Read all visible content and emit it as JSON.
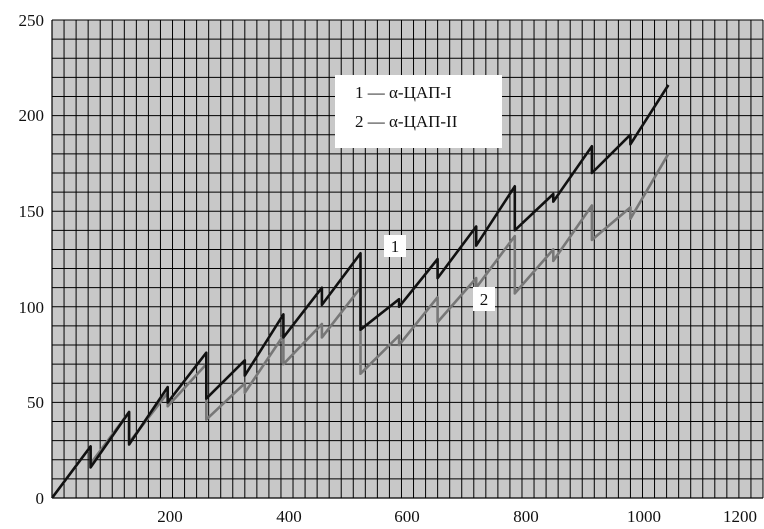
{
  "chart_data": {
    "type": "line",
    "title": "",
    "xlabel": "",
    "ylabel": "",
    "xlim": [
      0,
      1200
    ],
    "ylim": [
      0,
      250
    ],
    "x_ticks": [
      "200",
      "400",
      "600",
      "800",
      "1000",
      "1200"
    ],
    "y_ticks": [
      "0",
      "50",
      "100",
      "150",
      "200",
      "250"
    ],
    "grid": true,
    "legend_position": "top-center",
    "legend": [
      "1 — α-ЦАП-I",
      "2 — α-ЦАП-II"
    ],
    "curve_labels": [
      "1",
      "2"
    ],
    "series": [
      {
        "color": "#111111",
        "x": [
          0,
          64,
          64,
          128,
          128,
          192,
          192,
          256,
          256,
          320,
          320,
          384,
          384,
          448,
          448,
          512,
          512,
          576,
          576,
          640,
          640,
          704,
          704,
          768,
          768,
          832,
          832,
          896,
          896,
          960,
          960,
          1023
        ],
        "y": [
          0,
          27,
          16,
          45,
          28,
          58,
          50,
          76,
          52,
          72,
          64,
          96,
          84,
          110,
          101,
          128,
          88,
          104,
          100,
          125,
          115,
          142,
          132,
          163,
          140,
          159,
          155,
          184,
          170,
          190,
          185,
          216
        ]
      },
      {
        "color": "#777777",
        "x": [
          0,
          64,
          64,
          128,
          128,
          192,
          192,
          256,
          256,
          320,
          320,
          384,
          384,
          448,
          448,
          512,
          512,
          576,
          576,
          640,
          640,
          704,
          704,
          768,
          768,
          832,
          832,
          896,
          896,
          960,
          960,
          1023
        ],
        "y": [
          0,
          27,
          18,
          45,
          29,
          55,
          48,
          70,
          41,
          60,
          55,
          85,
          70,
          91,
          84,
          110,
          65,
          85,
          80,
          105,
          92,
          115,
          110,
          137,
          107,
          130,
          124,
          153,
          135,
          152,
          146,
          180
        ]
      }
    ]
  }
}
